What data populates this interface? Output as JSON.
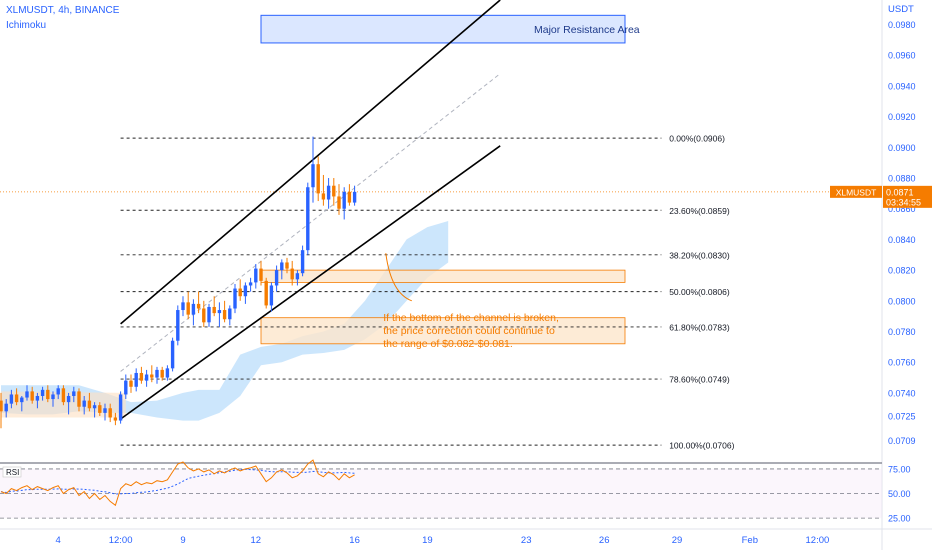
{
  "header": {
    "title": "XLMUSDT, 4h, BINANCE",
    "indicator": "Ichimoku"
  },
  "axis_unit": "USDT",
  "rsi_label": "RSI",
  "price_tag": {
    "symbol": "XLMUSDT",
    "price": "0.0871",
    "countdown": "03:34:55"
  },
  "resistance_label": "Major Resistance Area",
  "annotation": [
    "If the bottom of the channel is broken,",
    "the price correction could continue to",
    "the range of $0.082-$0.081."
  ],
  "colors": {
    "up": "#2962ff",
    "down": "#f57c00",
    "accent": "#f57c00",
    "axis_text": "#2962ff",
    "cloud": "#bbdefb",
    "zone": "#fde6cc"
  },
  "chart_data": {
    "type": "candlestick",
    "symbol": "XLMUSDT",
    "interval": "4h",
    "exchange": "BINANCE",
    "ylim": [
      0.0695,
      0.0995
    ],
    "y_ticks": [
      "0.0980",
      "0.0960",
      "0.0940",
      "0.0920",
      "0.0900",
      "0.0880",
      "0.0860",
      "0.0840",
      "0.0820",
      "0.0800",
      "0.0780",
      "0.0760",
      "0.0740",
      "0.0725",
      "0.0709"
    ],
    "x_ticks": [
      {
        "label": "4",
        "idx": 11
      },
      {
        "label": "12:00",
        "idx": 23
      },
      {
        "label": "9",
        "idx": 35
      },
      {
        "label": "12",
        "idx": 49
      },
      {
        "label": "16",
        "idx": 68
      },
      {
        "label": "19",
        "idx": 82
      },
      {
        "label": "23",
        "idx": 101
      },
      {
        "label": "26",
        "idx": 116
      },
      {
        "label": "29",
        "idx": 130
      },
      {
        "label": "Feb",
        "idx": 144
      },
      {
        "label": "12:00",
        "idx": 157
      }
    ],
    "fib_levels": [
      {
        "label": "0.00%(0.0906)",
        "value": 0.0906
      },
      {
        "label": "23.60%(0.0859)",
        "value": 0.0859
      },
      {
        "label": "38.20%(0.0830)",
        "value": 0.083
      },
      {
        "label": "50.00%(0.0806)",
        "value": 0.0806
      },
      {
        "label": "61.80%(0.0783)",
        "value": 0.0783
      },
      {
        "label": "78.60%(0.0749)",
        "value": 0.0749
      },
      {
        "label": "100.00%(0.0706)",
        "value": 0.0706
      }
    ],
    "last_price": 0.0871,
    "resistance_zone": {
      "x0": 50,
      "x1": 120,
      "y0": 0.0986,
      "y1": 0.0968
    },
    "support_zone": {
      "x0": 50,
      "x1": 120,
      "y0": 0.082,
      "y1": 0.0812
    },
    "correction_zone": {
      "x0": 50,
      "x1": 120,
      "y0": 0.0789,
      "y1": 0.0772
    },
    "channel_upper": [
      [
        23,
        0.0785
      ],
      [
        96,
        0.0996
      ]
    ],
    "channel_lower": [
      [
        23,
        0.0723
      ],
      [
        96,
        0.0901
      ]
    ],
    "channel_mid": [
      [
        23,
        0.0754
      ],
      [
        96,
        0.0948
      ]
    ],
    "ichimoku_cloud": {
      "x": [
        0,
        5,
        10,
        15,
        20,
        25,
        30,
        35,
        38,
        42,
        46,
        50,
        54,
        58,
        62,
        66,
        70,
        74,
        78,
        82,
        86
      ],
      "upper": [
        0.0745,
        0.0745,
        0.0745,
        0.0745,
        0.074,
        0.0734,
        0.0735,
        0.074,
        0.0742,
        0.0742,
        0.0765,
        0.077,
        0.0772,
        0.0777,
        0.078,
        0.0785,
        0.08,
        0.082,
        0.084,
        0.0848,
        0.0852
      ],
      "lower": [
        0.0727,
        0.0726,
        0.0726,
        0.0728,
        0.0727,
        0.0727,
        0.0724,
        0.0722,
        0.0722,
        0.0727,
        0.0738,
        0.0758,
        0.076,
        0.0765,
        0.0766,
        0.0768,
        0.0775,
        0.0785,
        0.08,
        0.0815,
        0.0825
      ]
    },
    "candles": [
      [
        0.0735,
        0.074,
        0.0717,
        0.0728
      ],
      [
        0.0728,
        0.0736,
        0.0724,
        0.0733
      ],
      [
        0.0733,
        0.0742,
        0.073,
        0.0739
      ],
      [
        0.0739,
        0.0743,
        0.0732,
        0.0734
      ],
      [
        0.0734,
        0.0738,
        0.0728,
        0.0737
      ],
      [
        0.0737,
        0.0745,
        0.0735,
        0.0741
      ],
      [
        0.0741,
        0.0744,
        0.0733,
        0.0735
      ],
      [
        0.0735,
        0.074,
        0.073,
        0.0738
      ],
      [
        0.0738,
        0.0744,
        0.0735,
        0.0742
      ],
      [
        0.0742,
        0.0745,
        0.0734,
        0.0736
      ],
      [
        0.0736,
        0.0741,
        0.0731,
        0.0739
      ],
      [
        0.0739,
        0.0745,
        0.0736,
        0.0743
      ],
      [
        0.0743,
        0.0745,
        0.0732,
        0.0734
      ],
      [
        0.0734,
        0.074,
        0.0726,
        0.0738
      ],
      [
        0.0738,
        0.0744,
        0.0734,
        0.0741
      ],
      [
        0.0741,
        0.0743,
        0.0728,
        0.0731
      ],
      [
        0.0731,
        0.0738,
        0.0726,
        0.0735
      ],
      [
        0.0735,
        0.074,
        0.0728,
        0.073
      ],
      [
        0.073,
        0.0734,
        0.0724,
        0.0732
      ],
      [
        0.0732,
        0.0734,
        0.0725,
        0.0727
      ],
      [
        0.0727,
        0.0733,
        0.0722,
        0.073
      ],
      [
        0.073,
        0.0733,
        0.0721,
        0.0724
      ],
      [
        0.0724,
        0.0727,
        0.0719,
        0.0722
      ],
      [
        0.0722,
        0.0741,
        0.072,
        0.0739
      ],
      [
        0.0739,
        0.0752,
        0.0736,
        0.0748
      ],
      [
        0.0748,
        0.0752,
        0.074,
        0.0744
      ],
      [
        0.0744,
        0.0756,
        0.0741,
        0.0753
      ],
      [
        0.0753,
        0.0757,
        0.0746,
        0.0748
      ],
      [
        0.0748,
        0.0755,
        0.0744,
        0.0752
      ],
      [
        0.0752,
        0.0758,
        0.0747,
        0.075
      ],
      [
        0.075,
        0.0757,
        0.0746,
        0.0755
      ],
      [
        0.0755,
        0.0757,
        0.0748,
        0.075
      ],
      [
        0.075,
        0.0758,
        0.0748,
        0.0756
      ],
      [
        0.0756,
        0.0776,
        0.0754,
        0.0774
      ],
      [
        0.0774,
        0.0797,
        0.0771,
        0.0794
      ],
      [
        0.0794,
        0.0803,
        0.079,
        0.0799
      ],
      [
        0.0799,
        0.0806,
        0.0788,
        0.0791
      ],
      [
        0.0791,
        0.0801,
        0.0784,
        0.0798
      ],
      [
        0.0798,
        0.0806,
        0.0792,
        0.0795
      ],
      [
        0.0795,
        0.08,
        0.0783,
        0.0786
      ],
      [
        0.0786,
        0.0798,
        0.0783,
        0.0796
      ],
      [
        0.0796,
        0.0803,
        0.079,
        0.0792
      ],
      [
        0.0792,
        0.0799,
        0.0783,
        0.0794
      ],
      [
        0.0794,
        0.08,
        0.0786,
        0.0788
      ],
      [
        0.0788,
        0.0797,
        0.0784,
        0.0795
      ],
      [
        0.0795,
        0.0811,
        0.0792,
        0.0808
      ],
      [
        0.0808,
        0.0814,
        0.08,
        0.0803
      ],
      [
        0.0803,
        0.0812,
        0.0798,
        0.081
      ],
      [
        0.081,
        0.0815,
        0.0806,
        0.0812
      ],
      [
        0.0812,
        0.0824,
        0.0808,
        0.0821
      ],
      [
        0.0821,
        0.0826,
        0.081,
        0.0813
      ],
      [
        0.0813,
        0.0815,
        0.0795,
        0.0797
      ],
      [
        0.0797,
        0.0812,
        0.0793,
        0.081
      ],
      [
        0.081,
        0.0823,
        0.0806,
        0.082
      ],
      [
        0.082,
        0.0827,
        0.0814,
        0.0825
      ],
      [
        0.0825,
        0.0828,
        0.0818,
        0.0821
      ],
      [
        0.0821,
        0.0826,
        0.081,
        0.0814
      ],
      [
        0.0814,
        0.082,
        0.081,
        0.0818
      ],
      [
        0.0818,
        0.0836,
        0.0816,
        0.0833
      ],
      [
        0.0833,
        0.0877,
        0.083,
        0.0874
      ],
      [
        0.0874,
        0.0907,
        0.0864,
        0.0889
      ],
      [
        0.0889,
        0.0894,
        0.0865,
        0.087
      ],
      [
        0.087,
        0.0882,
        0.0862,
        0.0866
      ],
      [
        0.0866,
        0.088,
        0.086,
        0.0875
      ],
      [
        0.0875,
        0.088,
        0.0862,
        0.0868
      ],
      [
        0.0868,
        0.0876,
        0.0856,
        0.086
      ],
      [
        0.086,
        0.0874,
        0.0853,
        0.0871
      ],
      [
        0.0871,
        0.0876,
        0.0862,
        0.0864
      ],
      [
        0.0864,
        0.0875,
        0.0862,
        0.0871
      ]
    ],
    "rsi": {
      "levels": [
        "75.00",
        "50.00",
        "25.00"
      ],
      "values": [
        52,
        50,
        55,
        53,
        56,
        58,
        54,
        57,
        55,
        53,
        56,
        58,
        50,
        54,
        56,
        48,
        52,
        45,
        50,
        44,
        48,
        42,
        38,
        55,
        60,
        58,
        62,
        59,
        61,
        60,
        63,
        62,
        64,
        72,
        80,
        82,
        76,
        73,
        75,
        72,
        74,
        70,
        73,
        71,
        74,
        76,
        73,
        75,
        76,
        78,
        70,
        62,
        66,
        72,
        74,
        71,
        66,
        68,
        73,
        80,
        84,
        70,
        67,
        72,
        69,
        64,
        70,
        66,
        69
      ]
    }
  }
}
